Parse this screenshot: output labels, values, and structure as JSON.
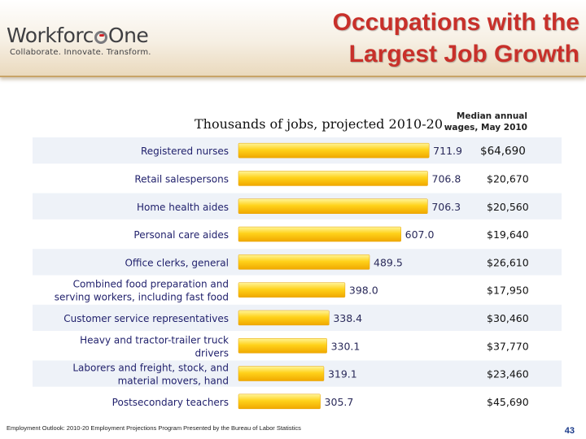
{
  "header": {
    "logo_name": "Workforce One",
    "logo_name_left": "Workforc",
    "logo_name_right": "One",
    "logo_tagline": "Collaborate.  Innovate.  Transform.",
    "title_line1": "Occupations with the",
    "title_line2": "Largest Job Growth"
  },
  "chart_data": {
    "type": "bar",
    "orientation": "horizontal",
    "title": "Thousands of jobs, projected 2010-20",
    "secondary_column_title": "Median annual wages, May 2010",
    "secondary_column_title_lines": [
      "Median annual",
      "wages, May 2010"
    ],
    "categories": [
      "Registered nurses",
      "Retail salespersons",
      "Home health aides",
      "Personal care aides",
      "Office clerks, general",
      "Combined food preparation and serving workers, including fast food",
      "Customer service representatives",
      "Heavy and tractor-trailer truck drivers",
      "Laborers and freight, stock, and material movers, hand",
      "Postsecondary teachers"
    ],
    "category_lines": [
      [
        "Registered nurses"
      ],
      [
        "Retail salespersons"
      ],
      [
        "Home health aides"
      ],
      [
        "Personal care aides"
      ],
      [
        "Office clerks, general"
      ],
      [
        "Combined food preparation and",
        "serving workers, including fast food"
      ],
      [
        "Customer service representatives"
      ],
      [
        "Heavy and tractor-trailer truck",
        "drivers"
      ],
      [
        "Laborers and freight, stock, and",
        "material movers, hand"
      ],
      [
        "Postsecondary teachers"
      ]
    ],
    "values": [
      711.9,
      706.8,
      706.3,
      607.0,
      489.5,
      398.0,
      338.4,
      330.1,
      319.1,
      305.7
    ],
    "value_labels": [
      "711.9",
      "706.8",
      "706.3",
      "607.0",
      "489.5",
      "398.0",
      "338.4",
      "330.1",
      "319.1",
      "305.7"
    ],
    "wages": [
      "$64,690",
      "$20,670",
      "$20,560",
      "$19,640",
      "$26,610",
      "$17,950",
      "$30,460",
      "$37,770",
      "$23,460",
      "$45,690"
    ],
    "xlim": [
      0,
      800
    ],
    "grid": false,
    "legend": "none",
    "colors": {
      "bar_light": "#fff59a",
      "bar_mid": "#ffd21a",
      "bar_dark": "#f0a800",
      "row_band": "#eef2f8",
      "category_text": "#1f1f6b",
      "value_text": "#2a2a5a",
      "wage_text": "#111111"
    }
  },
  "footer": {
    "source": "Employment Outlook: 2010-20 Employment Projections Program Presented by the Bureau of Labor Statistics",
    "page_number": "43"
  }
}
